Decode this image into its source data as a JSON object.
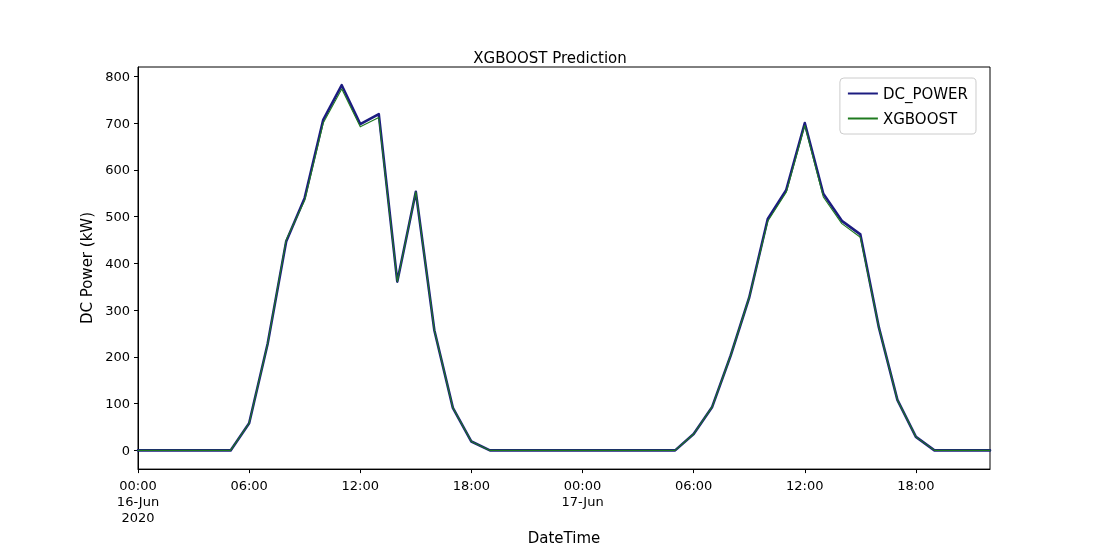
{
  "chart_data": {
    "type": "line",
    "title": "XGBOOST Prediction",
    "xlabel": "DateTime",
    "ylabel": "DC Power (kW)",
    "x": [
      "2020-06-16T00:00",
      "2020-06-16T01:00",
      "2020-06-16T02:00",
      "2020-06-16T03:00",
      "2020-06-16T04:00",
      "2020-06-16T05:00",
      "2020-06-16T06:00",
      "2020-06-16T07:00",
      "2020-06-16T08:00",
      "2020-06-16T09:00",
      "2020-06-16T10:00",
      "2020-06-16T11:00",
      "2020-06-16T12:00",
      "2020-06-16T13:00",
      "2020-06-16T14:00",
      "2020-06-16T15:00",
      "2020-06-16T16:00",
      "2020-06-16T17:00",
      "2020-06-16T18:00",
      "2020-06-16T19:00",
      "2020-06-16T20:00",
      "2020-06-16T21:00",
      "2020-06-16T22:00",
      "2020-06-16T23:00",
      "2020-06-17T00:00",
      "2020-06-17T01:00",
      "2020-06-17T02:00",
      "2020-06-17T03:00",
      "2020-06-17T04:00",
      "2020-06-17T05:00",
      "2020-06-17T06:00",
      "2020-06-17T07:00",
      "2020-06-17T08:00",
      "2020-06-17T09:00",
      "2020-06-17T10:00",
      "2020-06-17T11:00",
      "2020-06-17T12:00",
      "2020-06-17T13:00",
      "2020-06-17T14:00",
      "2020-06-17T15:00",
      "2020-06-17T16:00",
      "2020-06-17T17:00",
      "2020-06-17T18:00",
      "2020-06-17T19:00",
      "2020-06-17T20:00",
      "2020-06-17T21:00",
      "2020-06-17T22:00"
    ],
    "series": [
      {
        "name": "DC_POWER",
        "color": "#1c1c80",
        "values": [
          0,
          0,
          0,
          0,
          0,
          0,
          58,
          228,
          447,
          540,
          707,
          781,
          698,
          719,
          361,
          553,
          257,
          91,
          19,
          0,
          0,
          0,
          0,
          0,
          0,
          0,
          0,
          0,
          0,
          0,
          35,
          93,
          203,
          327,
          495,
          557,
          700,
          549,
          491,
          462,
          263,
          108,
          29,
          0,
          0,
          0,
          0
        ]
      },
      {
        "name": "XGBOOST",
        "color": "#1f7a1f",
        "values": [
          0,
          0,
          0,
          0,
          0,
          0,
          58,
          228,
          450,
          535,
          700,
          773,
          692,
          712,
          361,
          553,
          257,
          91,
          19,
          0,
          0,
          0,
          0,
          0,
          0,
          0,
          0,
          0,
          0,
          0,
          35,
          93,
          203,
          327,
          490,
          552,
          695,
          542,
          485,
          456,
          263,
          108,
          29,
          0,
          0,
          0,
          0
        ]
      }
    ],
    "xlim": [
      "2020-06-16T00:00",
      "2020-06-17T22:00"
    ],
    "xticks": [
      {
        "value": "2020-06-16T00:00",
        "label": "00:00\n16-Jun\n2020"
      },
      {
        "value": "2020-06-16T06:00",
        "label": "06:00"
      },
      {
        "value": "2020-06-16T12:00",
        "label": "12:00"
      },
      {
        "value": "2020-06-16T18:00",
        "label": "18:00"
      },
      {
        "value": "2020-06-17T00:00",
        "label": "00:00\n17-Jun"
      },
      {
        "value": "2020-06-17T06:00",
        "label": "06:00"
      },
      {
        "value": "2020-06-17T12:00",
        "label": "12:00"
      },
      {
        "value": "2020-06-17T18:00",
        "label": "18:00"
      }
    ],
    "ylim": [
      -40,
      820
    ],
    "yticks": [
      0,
      100,
      200,
      300,
      400,
      500,
      600,
      700,
      800
    ],
    "grid": false,
    "legend": "top right",
    "marker": "none",
    "line_style": "solid"
  }
}
